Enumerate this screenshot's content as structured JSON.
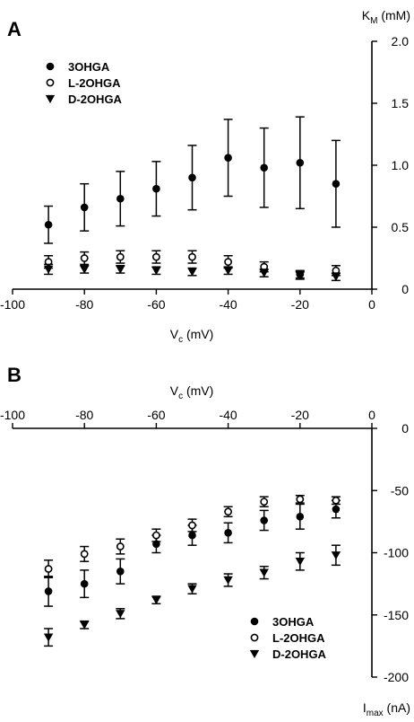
{
  "chart_data": [
    {
      "type": "scatter",
      "panel_label": "A",
      "x_axis": {
        "label_main": "V",
        "label_sub": "c",
        "label_unit": " (mV)",
        "range": [
          -100,
          0
        ],
        "ticks": [
          -100,
          -80,
          -60,
          -40,
          -20,
          0
        ],
        "tick_labels": [
          "-100",
          "-80",
          "-60",
          "-40",
          "-20",
          "0"
        ],
        "position": "bottom"
      },
      "y_axis": {
        "label_main": "K",
        "label_sub": "M",
        "label_unit": " (mM)",
        "range": [
          0,
          2.0
        ],
        "ticks": [
          0,
          0.5,
          1.0,
          1.5,
          2.0
        ],
        "tick_labels": [
          "0",
          "0.5",
          "1.0",
          "1.5",
          "2.0"
        ],
        "position": "right"
      },
      "legend_position": "top-left",
      "series": [
        {
          "name": "3OHGA",
          "marker": "filled-circle",
          "x": [
            -90,
            -80,
            -70,
            -60,
            -50,
            -40,
            -30,
            -20,
            -10
          ],
          "y": [
            0.52,
            0.66,
            0.73,
            0.81,
            0.9,
            1.06,
            0.98,
            1.02,
            0.85
          ],
          "err": [
            0.15,
            0.19,
            0.22,
            0.22,
            0.26,
            0.31,
            0.32,
            0.37,
            0.35
          ]
        },
        {
          "name": "L-2OHGA",
          "marker": "open-circle",
          "x": [
            -90,
            -80,
            -70,
            -60,
            -50,
            -40,
            -30,
            -20,
            -10
          ],
          "y": [
            0.22,
            0.25,
            0.26,
            0.26,
            0.26,
            0.22,
            0.18,
            0.12,
            0.15
          ],
          "err": [
            0.05,
            0.05,
            0.05,
            0.05,
            0.05,
            0.05,
            0.04,
            0.03,
            0.04
          ]
        },
        {
          "name": "D-2OHGA",
          "marker": "filled-triangle-down",
          "x": [
            -90,
            -80,
            -70,
            -60,
            -50,
            -40,
            -30,
            -20,
            -10
          ],
          "y": [
            0.16,
            0.16,
            0.16,
            0.15,
            0.14,
            0.15,
            0.13,
            0.11,
            0.1
          ],
          "err": [
            0.04,
            0.03,
            0.03,
            0.03,
            0.03,
            0.03,
            0.03,
            0.03,
            0.03
          ]
        }
      ]
    },
    {
      "type": "scatter",
      "panel_label": "B",
      "x_axis": {
        "label_main": "V",
        "label_sub": "c",
        "label_unit": " (mV)",
        "range": [
          -100,
          0
        ],
        "ticks": [
          -100,
          -80,
          -60,
          -40,
          -20,
          0
        ],
        "tick_labels": [
          "-100",
          "-80",
          "-60",
          "-40",
          "-20",
          "0"
        ],
        "position": "top"
      },
      "y_axis": {
        "label_main": "I",
        "label_sub": "max",
        "label_unit": " (nA)",
        "range": [
          -200,
          0
        ],
        "ticks": [
          0,
          -50,
          -100,
          -150,
          -200
        ],
        "tick_labels": [
          "0",
          "-50",
          "-100",
          "-150",
          "-200"
        ],
        "position": "right"
      },
      "legend_position": "bottom-right",
      "series": [
        {
          "name": "3OHGA",
          "marker": "filled-circle",
          "x": [
            -90,
            -80,
            -70,
            -60,
            -50,
            -40,
            -30,
            -20,
            -10
          ],
          "y": [
            -131,
            -125,
            -115,
            -93,
            -86,
            -84,
            -74,
            -71,
            -65
          ],
          "err": [
            12,
            11,
            10,
            7,
            8,
            8,
            8,
            10,
            7
          ]
        },
        {
          "name": "L-2OHGA",
          "marker": "open-circle",
          "x": [
            -90,
            -80,
            -70,
            -60,
            -50,
            -40,
            -30,
            -20,
            -10
          ],
          "y": [
            -113,
            -101,
            -95,
            -86,
            -78,
            -67,
            -59,
            -57,
            -58
          ],
          "err": [
            7,
            6,
            6,
            5,
            5,
            4,
            4,
            3,
            3
          ]
        },
        {
          "name": "D-2OHGA",
          "marker": "filled-triangle-down",
          "x": [
            -90,
            -80,
            -70,
            -60,
            -50,
            -40,
            -30,
            -20,
            -10
          ],
          "y": [
            -168,
            -158,
            -149,
            -138,
            -129,
            -122,
            -116,
            -107,
            -102
          ],
          "err": [
            7,
            3,
            4,
            3,
            4,
            5,
            5,
            7,
            8
          ]
        }
      ]
    }
  ]
}
